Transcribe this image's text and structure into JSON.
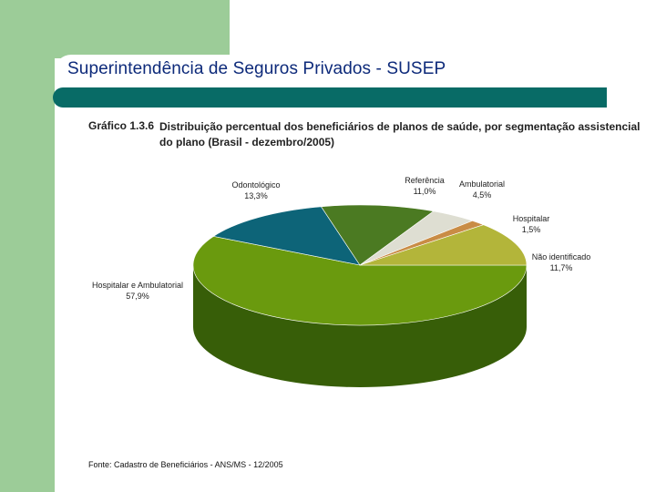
{
  "slide": {
    "title": "Superintendência de Seguros Privados - SUSEP"
  },
  "figure": {
    "number": "Gráfico 1.3.6",
    "caption": "Distribuição percentual dos beneficiários de planos de saúde, por segmentação assistencial do plano (Brasil - dezembro/2005)",
    "source": "Fonte: Cadastro de Beneficiários - ANS/MS - 12/2005"
  },
  "chart_data": {
    "type": "pie",
    "title": "Distribuição percentual dos beneficiários de planos de saúde, por segmentação assistencial do plano (Brasil - dezembro/2005)",
    "unit": "%",
    "slices": [
      {
        "label": "Hospitalar e Ambulatorial",
        "value": 57.9,
        "display": "57,9%",
        "color": "#6a9a0e",
        "side_color": "#375e08"
      },
      {
        "label": "Odontológico",
        "value": 13.3,
        "display": "13,3%",
        "color": "#0d6478",
        "side_color": "#073c4a"
      },
      {
        "label": "Referência",
        "value": 11.0,
        "display": "11,0%",
        "color": "#4b7a22",
        "side_color": "#2a4710"
      },
      {
        "label": "Ambulatorial",
        "value": 4.5,
        "display": "4,5%",
        "color": "#deded2",
        "side_color": "#9a9a8c"
      },
      {
        "label": "Hospitalar",
        "value": 1.5,
        "display": "1,5%",
        "color": "#c98c45",
        "side_color": "#7d5220"
      },
      {
        "label": "Não identificado",
        "value": 11.7,
        "display": "11,7%",
        "color": "#b3b53a",
        "side_color": "#6f7016"
      }
    ]
  }
}
